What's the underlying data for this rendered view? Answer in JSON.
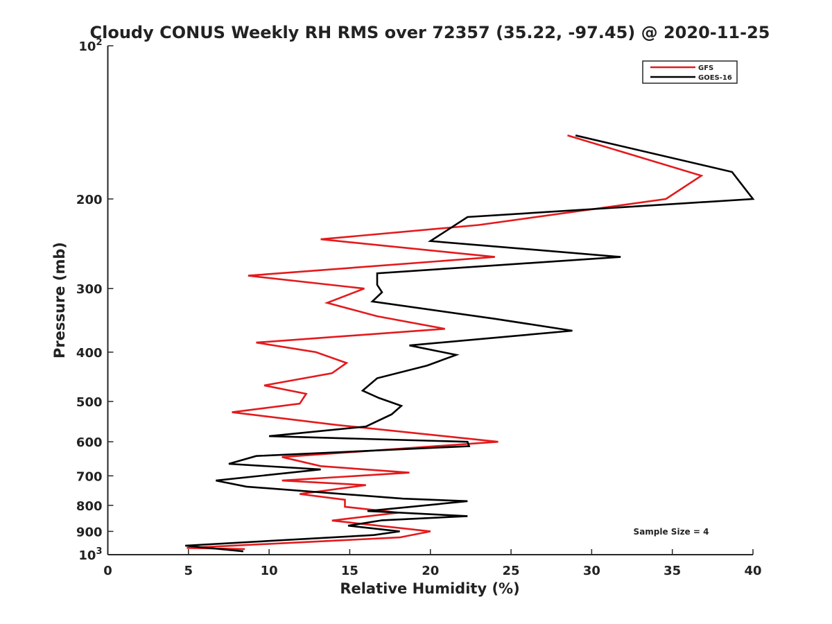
{
  "chart_data": {
    "type": "line",
    "title": "Cloudy CONUS Weekly RH RMS over 72357 (35.22, -97.45) @ 2020-11-25",
    "xlabel": "Relative Humidity (%)",
    "ylabel": "Pressure (mb)",
    "xlim": [
      0,
      40
    ],
    "ylim": [
      100,
      1000
    ],
    "y_scale": "log",
    "y_reversed": true,
    "x_ticks": [
      "0",
      "5",
      "10",
      "15",
      "20",
      "25",
      "30",
      "35",
      "40"
    ],
    "y_ticks": [
      {
        "value": 100,
        "base": "10",
        "exp": "2"
      },
      {
        "value": 200,
        "label": "200"
      },
      {
        "value": 300,
        "label": "300"
      },
      {
        "value": 400,
        "label": "400"
      },
      {
        "value": 500,
        "label": "500"
      },
      {
        "value": 600,
        "label": "600"
      },
      {
        "value": 700,
        "label": "700"
      },
      {
        "value": 800,
        "label": "800"
      },
      {
        "value": 900,
        "label": "900"
      },
      {
        "value": 1000,
        "base": "10",
        "exp": "3"
      }
    ],
    "grid": false,
    "legend_position": "top-right",
    "annotation": "Sample Size = 4",
    "series": [
      {
        "name": "GFS",
        "color": "#e31a1c",
        "points": [
          [
            28.5,
            150
          ],
          [
            36.8,
            180
          ],
          [
            34.6,
            200
          ],
          [
            23.0,
            225
          ],
          [
            13.2,
            240
          ],
          [
            24.0,
            260
          ],
          [
            8.7,
            283
          ],
          [
            15.9,
            300
          ],
          [
            13.6,
            320
          ],
          [
            16.7,
            340
          ],
          [
            20.9,
            360
          ],
          [
            9.2,
            383
          ],
          [
            12.9,
            400
          ],
          [
            14.8,
            420
          ],
          [
            13.9,
            440
          ],
          [
            9.7,
            465
          ],
          [
            12.3,
            483
          ],
          [
            11.9,
            505
          ],
          [
            7.7,
            525
          ],
          [
            14.2,
            556
          ],
          [
            24.2,
            600
          ],
          [
            19.4,
            615
          ],
          [
            10.8,
            643
          ],
          [
            13.2,
            670
          ],
          [
            18.7,
            690
          ],
          [
            10.8,
            715
          ],
          [
            16.0,
            730
          ],
          [
            11.9,
            760
          ],
          [
            14.7,
            780
          ],
          [
            14.7,
            805
          ],
          [
            18.0,
            827
          ],
          [
            13.9,
            857
          ],
          [
            20.0,
            900
          ],
          [
            18.1,
            925
          ],
          [
            4.9,
            970
          ],
          [
            8.5,
            975
          ]
        ]
      },
      {
        "name": "GOES-16",
        "color": "#000000",
        "points": [
          [
            29.0,
            150
          ],
          [
            38.7,
            177
          ],
          [
            40.0,
            200
          ],
          [
            22.3,
            217
          ],
          [
            20.0,
            242
          ],
          [
            31.8,
            260
          ],
          [
            16.7,
            280
          ],
          [
            16.7,
            295
          ],
          [
            17.0,
            305
          ],
          [
            16.4,
            318
          ],
          [
            24.0,
            344
          ],
          [
            28.8,
            363
          ],
          [
            18.7,
            388
          ],
          [
            21.6,
            405
          ],
          [
            19.8,
            425
          ],
          [
            16.7,
            450
          ],
          [
            15.8,
            476
          ],
          [
            16.8,
            492
          ],
          [
            18.2,
            510
          ],
          [
            17.6,
            530
          ],
          [
            16.0,
            560
          ],
          [
            10.0,
            585
          ],
          [
            22.3,
            600
          ],
          [
            22.4,
            612
          ],
          [
            9.2,
            640
          ],
          [
            7.5,
            663
          ],
          [
            13.2,
            680
          ],
          [
            6.7,
            715
          ],
          [
            8.6,
            735
          ],
          [
            18.3,
            776
          ],
          [
            22.3,
            785
          ],
          [
            18.7,
            806
          ],
          [
            16.1,
            821
          ],
          [
            22.3,
            840
          ],
          [
            17.0,
            856
          ],
          [
            14.9,
            877
          ],
          [
            18.1,
            900
          ],
          [
            16.5,
            915
          ],
          [
            4.8,
            960
          ],
          [
            8.4,
            985
          ]
        ]
      }
    ]
  }
}
